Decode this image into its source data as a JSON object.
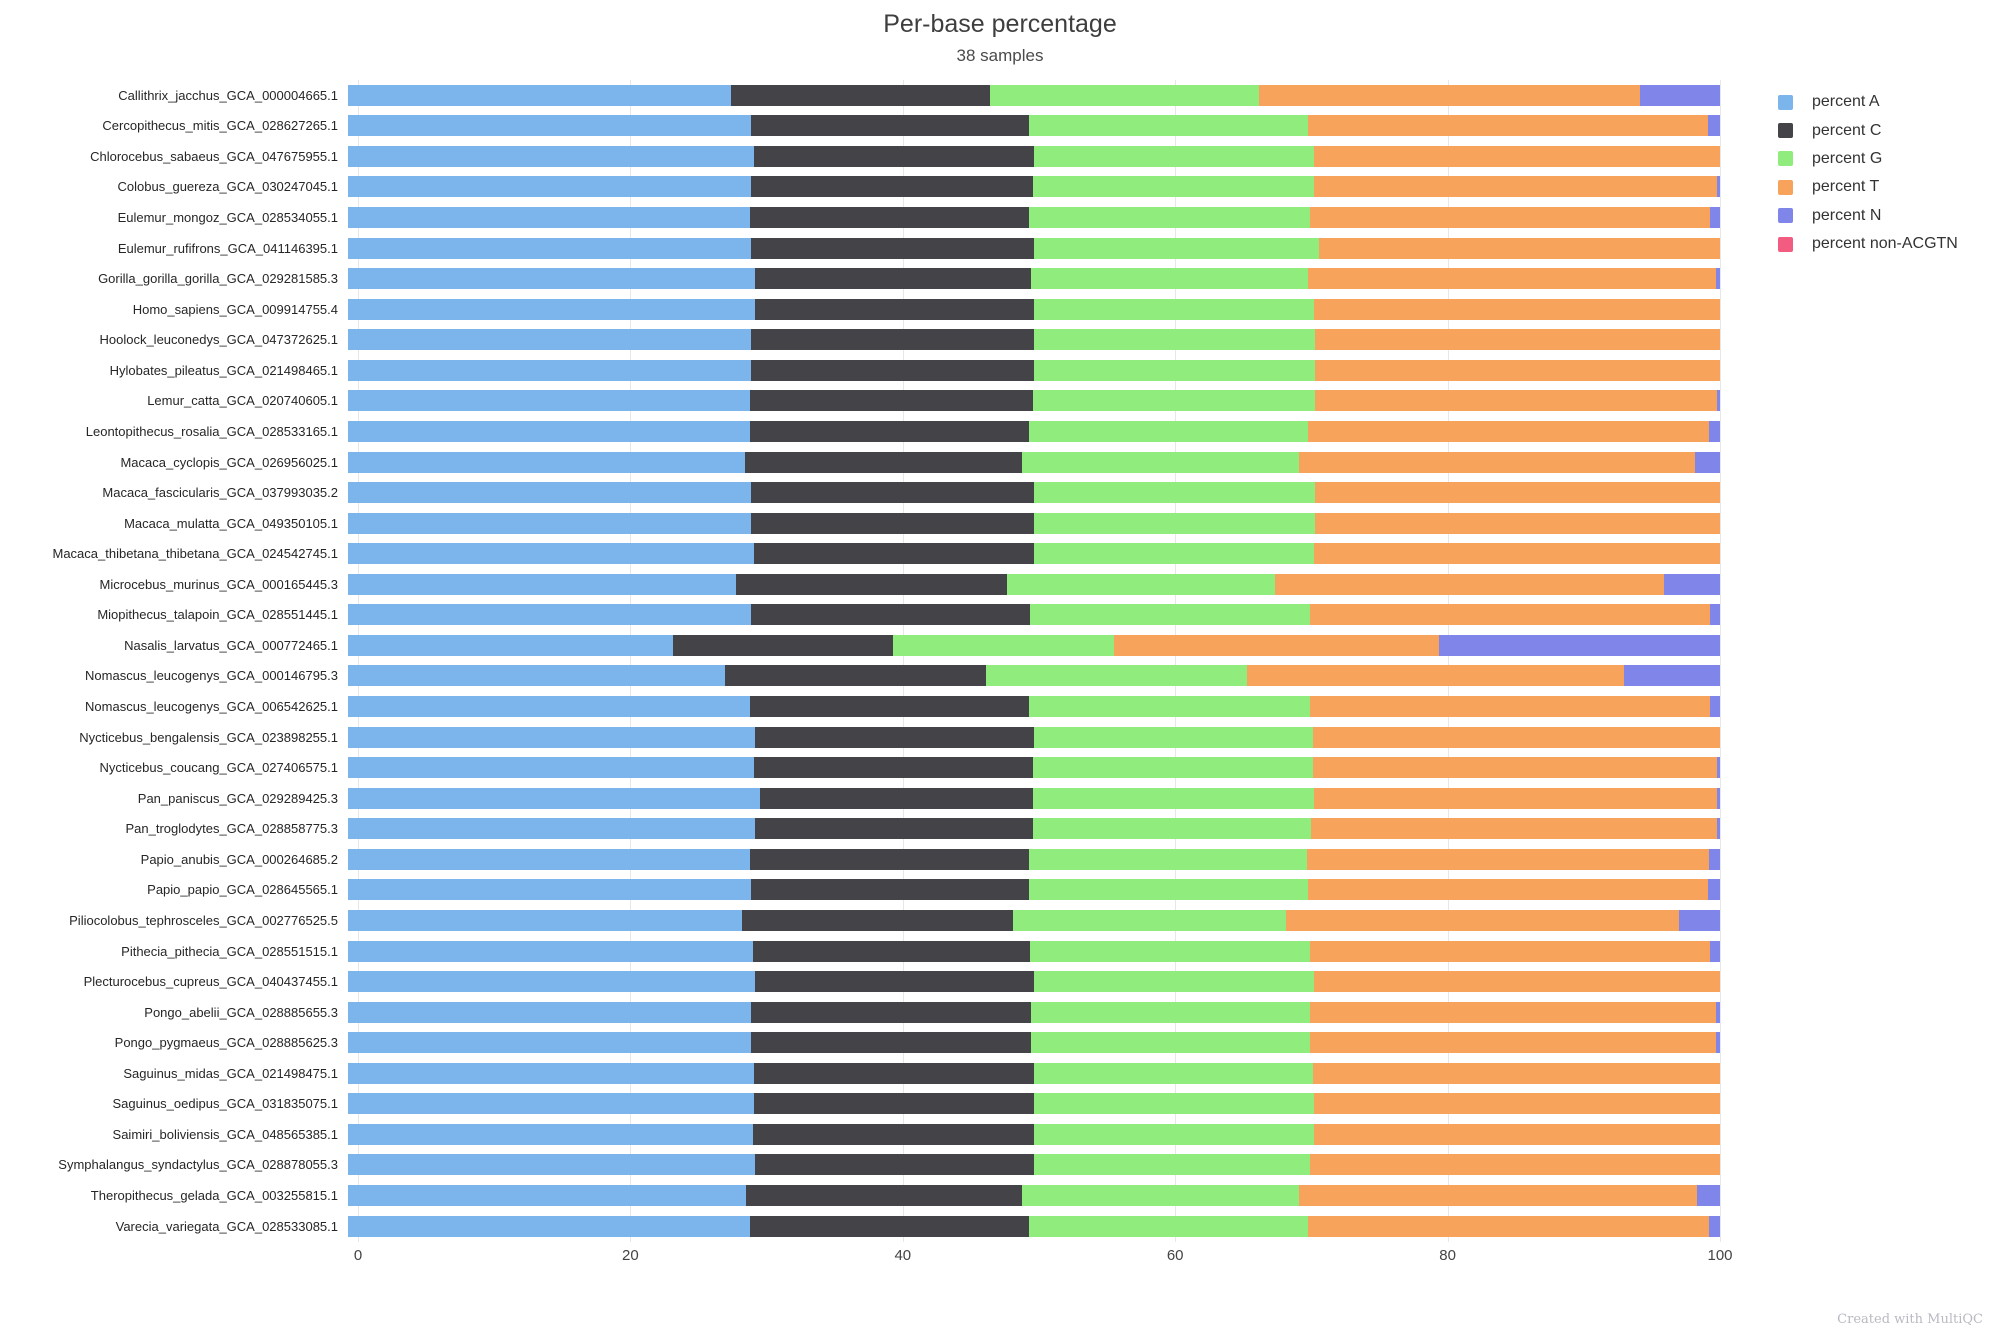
{
  "title": "Per-base percentage",
  "subtitle": "38 samples",
  "watermark": "Created with MultiQC",
  "legend": {
    "items": [
      {
        "label": "percent A",
        "color": "#7cb5ec"
      },
      {
        "label": "percent C",
        "color": "#434348"
      },
      {
        "label": "percent G",
        "color": "#90ed7d"
      },
      {
        "label": "percent T",
        "color": "#f7a35c"
      },
      {
        "label": "percent N",
        "color": "#8085e9"
      },
      {
        "label": "percent non-ACGTN",
        "color": "#f15c80"
      }
    ]
  },
  "chart_data": {
    "type": "bar",
    "orientation": "horizontal",
    "stacked": true,
    "title": "Per-base percentage",
    "subtitle": "38 samples",
    "xlabel": "",
    "ylabel": "",
    "xlim": [
      0,
      100
    ],
    "x_ticks": [
      0,
      20,
      40,
      60,
      80,
      100
    ],
    "grid": true,
    "legend_position": "right",
    "series_names": [
      "percent A",
      "percent C",
      "percent G",
      "percent T",
      "percent N",
      "percent non-ACGTN"
    ],
    "series_keys": [
      "percent-A",
      "percent-C",
      "percent-G",
      "percent-T",
      "percent-N",
      "percent-non-ACGTN"
    ],
    "series_colors": [
      "#7cb5ec",
      "#434348",
      "#90ed7d",
      "#f7a35c",
      "#8085e9",
      "#f15c80"
    ],
    "samples": [
      {
        "name": "Callithrix_jacchus_GCA_000004665.1",
        "values": [
          27.9,
          18.9,
          19.6,
          27.8,
          5.8,
          0
        ]
      },
      {
        "name": "Cercopithecus_mitis_GCA_028627265.1",
        "values": [
          29.4,
          20.2,
          20.4,
          29.1,
          0.9,
          0
        ]
      },
      {
        "name": "Chlorocebus_sabaeus_GCA_047675955.1",
        "values": [
          29.6,
          20.4,
          20.4,
          29.6,
          0.0,
          0
        ]
      },
      {
        "name": "Colobus_guereza_GCA_030247045.1",
        "values": [
          29.4,
          20.5,
          20.5,
          29.4,
          0.2,
          0
        ]
      },
      {
        "name": "Eulemur_mongoz_GCA_028534055.1",
        "values": [
          29.3,
          20.3,
          20.5,
          29.2,
          0.7,
          0
        ]
      },
      {
        "name": "Eulemur_rufifrons_GCA_041146395.1",
        "values": [
          29.4,
          20.6,
          20.8,
          29.2,
          0.0,
          0
        ]
      },
      {
        "name": "Gorilla_gorilla_gorilla_GCA_029281585.3",
        "values": [
          29.7,
          20.1,
          20.2,
          29.7,
          0.3,
          0
        ]
      },
      {
        "name": "Homo_sapiens_GCA_009914755.4",
        "values": [
          29.7,
          20.3,
          20.4,
          29.6,
          0.0,
          0
        ]
      },
      {
        "name": "Hoolock_leuconedys_GCA_047372625.1",
        "values": [
          29.4,
          20.6,
          20.5,
          29.5,
          0.0,
          0
        ]
      },
      {
        "name": "Hylobates_pileatus_GCA_021498465.1",
        "values": [
          29.4,
          20.6,
          20.5,
          29.5,
          0.0,
          0
        ]
      },
      {
        "name": "Lemur_catta_GCA_020740605.1",
        "values": [
          29.3,
          20.6,
          20.6,
          29.3,
          0.2,
          0
        ]
      },
      {
        "name": "Leontopithecus_rosalia_GCA_028533165.1",
        "values": [
          29.3,
          20.3,
          20.4,
          29.2,
          0.8,
          0
        ]
      },
      {
        "name": "Macaca_cyclopis_GCA_026956025.1",
        "values": [
          28.9,
          20.2,
          20.2,
          28.9,
          1.8,
          0
        ]
      },
      {
        "name": "Macaca_fascicularis_GCA_037993035.2",
        "values": [
          29.4,
          20.6,
          20.5,
          29.5,
          0.0,
          0
        ]
      },
      {
        "name": "Macaca_mulatta_GCA_049350105.1",
        "values": [
          29.4,
          20.6,
          20.5,
          29.5,
          0.0,
          0
        ]
      },
      {
        "name": "Macaca_thibetana_thibetana_GCA_024542745.1",
        "values": [
          29.6,
          20.4,
          20.4,
          29.6,
          0.0,
          0
        ]
      },
      {
        "name": "Microcebus_murinus_GCA_000165445.3",
        "values": [
          28.3,
          19.7,
          19.6,
          28.3,
          4.1,
          0
        ]
      },
      {
        "name": "Miopithecus_talapoin_GCA_028551445.1",
        "values": [
          29.4,
          20.3,
          20.4,
          29.2,
          0.7,
          0
        ]
      },
      {
        "name": "Nasalis_larvatus_GCA_000772465.1",
        "values": [
          23.7,
          16.0,
          16.1,
          23.7,
          20.5,
          0
        ]
      },
      {
        "name": "Nomascus_leucogenys_GCA_000146795.3",
        "values": [
          27.5,
          19.0,
          19.0,
          27.5,
          7.0,
          0
        ]
      },
      {
        "name": "Nomascus_leucogenys_GCA_006542625.1",
        "values": [
          29.3,
          20.3,
          20.5,
          29.2,
          0.7,
          0
        ]
      },
      {
        "name": "Nycticebus_bengalensis_GCA_023898255.1",
        "values": [
          29.7,
          20.3,
          20.3,
          29.7,
          0.0,
          0
        ]
      },
      {
        "name": "Nycticebus_coucang_GCA_027406575.1",
        "values": [
          29.6,
          20.3,
          20.4,
          29.5,
          0.2,
          0
        ]
      },
      {
        "name": "Pan_paniscus_GCA_029289425.3",
        "values": [
          30.0,
          19.9,
          20.5,
          29.4,
          0.2,
          0
        ]
      },
      {
        "name": "Pan_troglodytes_GCA_028858775.3",
        "values": [
          29.7,
          20.2,
          20.3,
          29.6,
          0.2,
          0
        ]
      },
      {
        "name": "Papio_anubis_GCA_000264685.2",
        "values": [
          29.3,
          20.3,
          20.3,
          29.3,
          0.8,
          0
        ]
      },
      {
        "name": "Papio_papio_GCA_028645565.1",
        "values": [
          29.4,
          20.2,
          20.4,
          29.1,
          0.9,
          0
        ]
      },
      {
        "name": "Piliocolobus_tephrosceles_GCA_002776525.5",
        "values": [
          28.7,
          19.8,
          19.9,
          28.6,
          3.0,
          0
        ]
      },
      {
        "name": "Pithecia_pithecia_GCA_028551515.1",
        "values": [
          29.5,
          20.2,
          20.4,
          29.2,
          0.7,
          0
        ]
      },
      {
        "name": "Plecturocebus_cupreus_GCA_040437455.1",
        "values": [
          29.7,
          20.3,
          20.4,
          29.6,
          0.0,
          0
        ]
      },
      {
        "name": "Pongo_abelii_GCA_028885655.3",
        "values": [
          29.4,
          20.4,
          20.3,
          29.6,
          0.3,
          0
        ]
      },
      {
        "name": "Pongo_pygmaeus_GCA_028885625.3",
        "values": [
          29.4,
          20.4,
          20.3,
          29.6,
          0.3,
          0
        ]
      },
      {
        "name": "Saguinus_midas_GCA_021498475.1",
        "values": [
          29.6,
          20.4,
          20.3,
          29.7,
          0.0,
          0
        ]
      },
      {
        "name": "Saguinus_oedipus_GCA_031835075.1",
        "values": [
          29.6,
          20.4,
          20.4,
          29.6,
          0.0,
          0
        ]
      },
      {
        "name": "Saimiri_boliviensis_GCA_048565385.1",
        "values": [
          29.5,
          20.5,
          20.4,
          29.6,
          0.0,
          0
        ]
      },
      {
        "name": "Symphalangus_syndactylus_GCA_028878055.3",
        "values": [
          29.7,
          20.3,
          20.1,
          29.9,
          0.0,
          0
        ]
      },
      {
        "name": "Theropithecus_gelada_GCA_003255815.1",
        "values": [
          29.0,
          20.1,
          20.2,
          29.0,
          1.7,
          0
        ]
      },
      {
        "name": "Varecia_variegata_GCA_028533085.1",
        "values": [
          29.3,
          20.3,
          20.4,
          29.2,
          0.8,
          0
        ]
      }
    ]
  }
}
